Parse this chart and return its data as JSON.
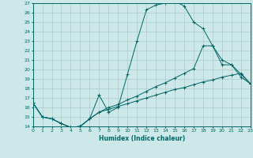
{
  "bg_color": "#cce8e8",
  "grid_color": "#aacccc",
  "line_color": "#006666",
  "xlabel": "Humidex (Indice chaleur)",
  "xlim": [
    0,
    23
  ],
  "ylim": [
    14,
    27
  ],
  "xticks": [
    0,
    1,
    2,
    3,
    4,
    5,
    6,
    7,
    8,
    9,
    10,
    11,
    12,
    13,
    14,
    15,
    16,
    17,
    18,
    19,
    20,
    21,
    22,
    23
  ],
  "yticks": [
    14,
    15,
    16,
    17,
    18,
    19,
    20,
    21,
    22,
    23,
    24,
    25,
    26,
    27
  ],
  "line1_x": [
    0,
    1,
    2,
    3,
    4,
    5,
    6,
    7,
    8,
    9,
    10,
    11,
    12,
    13,
    14,
    15,
    16,
    17,
    18,
    19,
    20,
    21,
    22,
    23
  ],
  "line1_y": [
    16.5,
    15.0,
    14.8,
    14.3,
    13.9,
    14.0,
    14.8,
    17.3,
    15.5,
    16.0,
    19.5,
    23.0,
    26.3,
    26.8,
    27.0,
    27.2,
    26.7,
    25.0,
    24.3,
    22.5,
    21.0,
    20.5,
    19.5,
    18.5
  ],
  "line2_x": [
    0,
    1,
    2,
    3,
    4,
    5,
    6,
    7,
    8,
    9,
    10,
    11,
    12,
    13,
    14,
    15,
    16,
    17,
    18,
    19,
    20,
    21,
    22,
    23
  ],
  "line2_y": [
    16.5,
    15.0,
    14.8,
    14.3,
    13.9,
    14.0,
    14.8,
    15.5,
    16.0,
    16.3,
    16.8,
    17.2,
    17.7,
    18.2,
    18.6,
    19.1,
    19.6,
    20.1,
    22.5,
    22.5,
    20.5,
    20.5,
    19.2,
    18.5
  ],
  "line3_x": [
    0,
    1,
    2,
    3,
    4,
    5,
    6,
    7,
    8,
    9,
    10,
    11,
    12,
    13,
    14,
    15,
    16,
    17,
    18,
    19,
    20,
    21,
    22,
    23
  ],
  "line3_y": [
    16.5,
    15.0,
    14.8,
    14.3,
    13.9,
    14.0,
    14.8,
    15.5,
    15.8,
    16.1,
    16.4,
    16.7,
    17.0,
    17.3,
    17.6,
    17.9,
    18.1,
    18.4,
    18.7,
    18.9,
    19.2,
    19.4,
    19.6,
    18.5
  ]
}
